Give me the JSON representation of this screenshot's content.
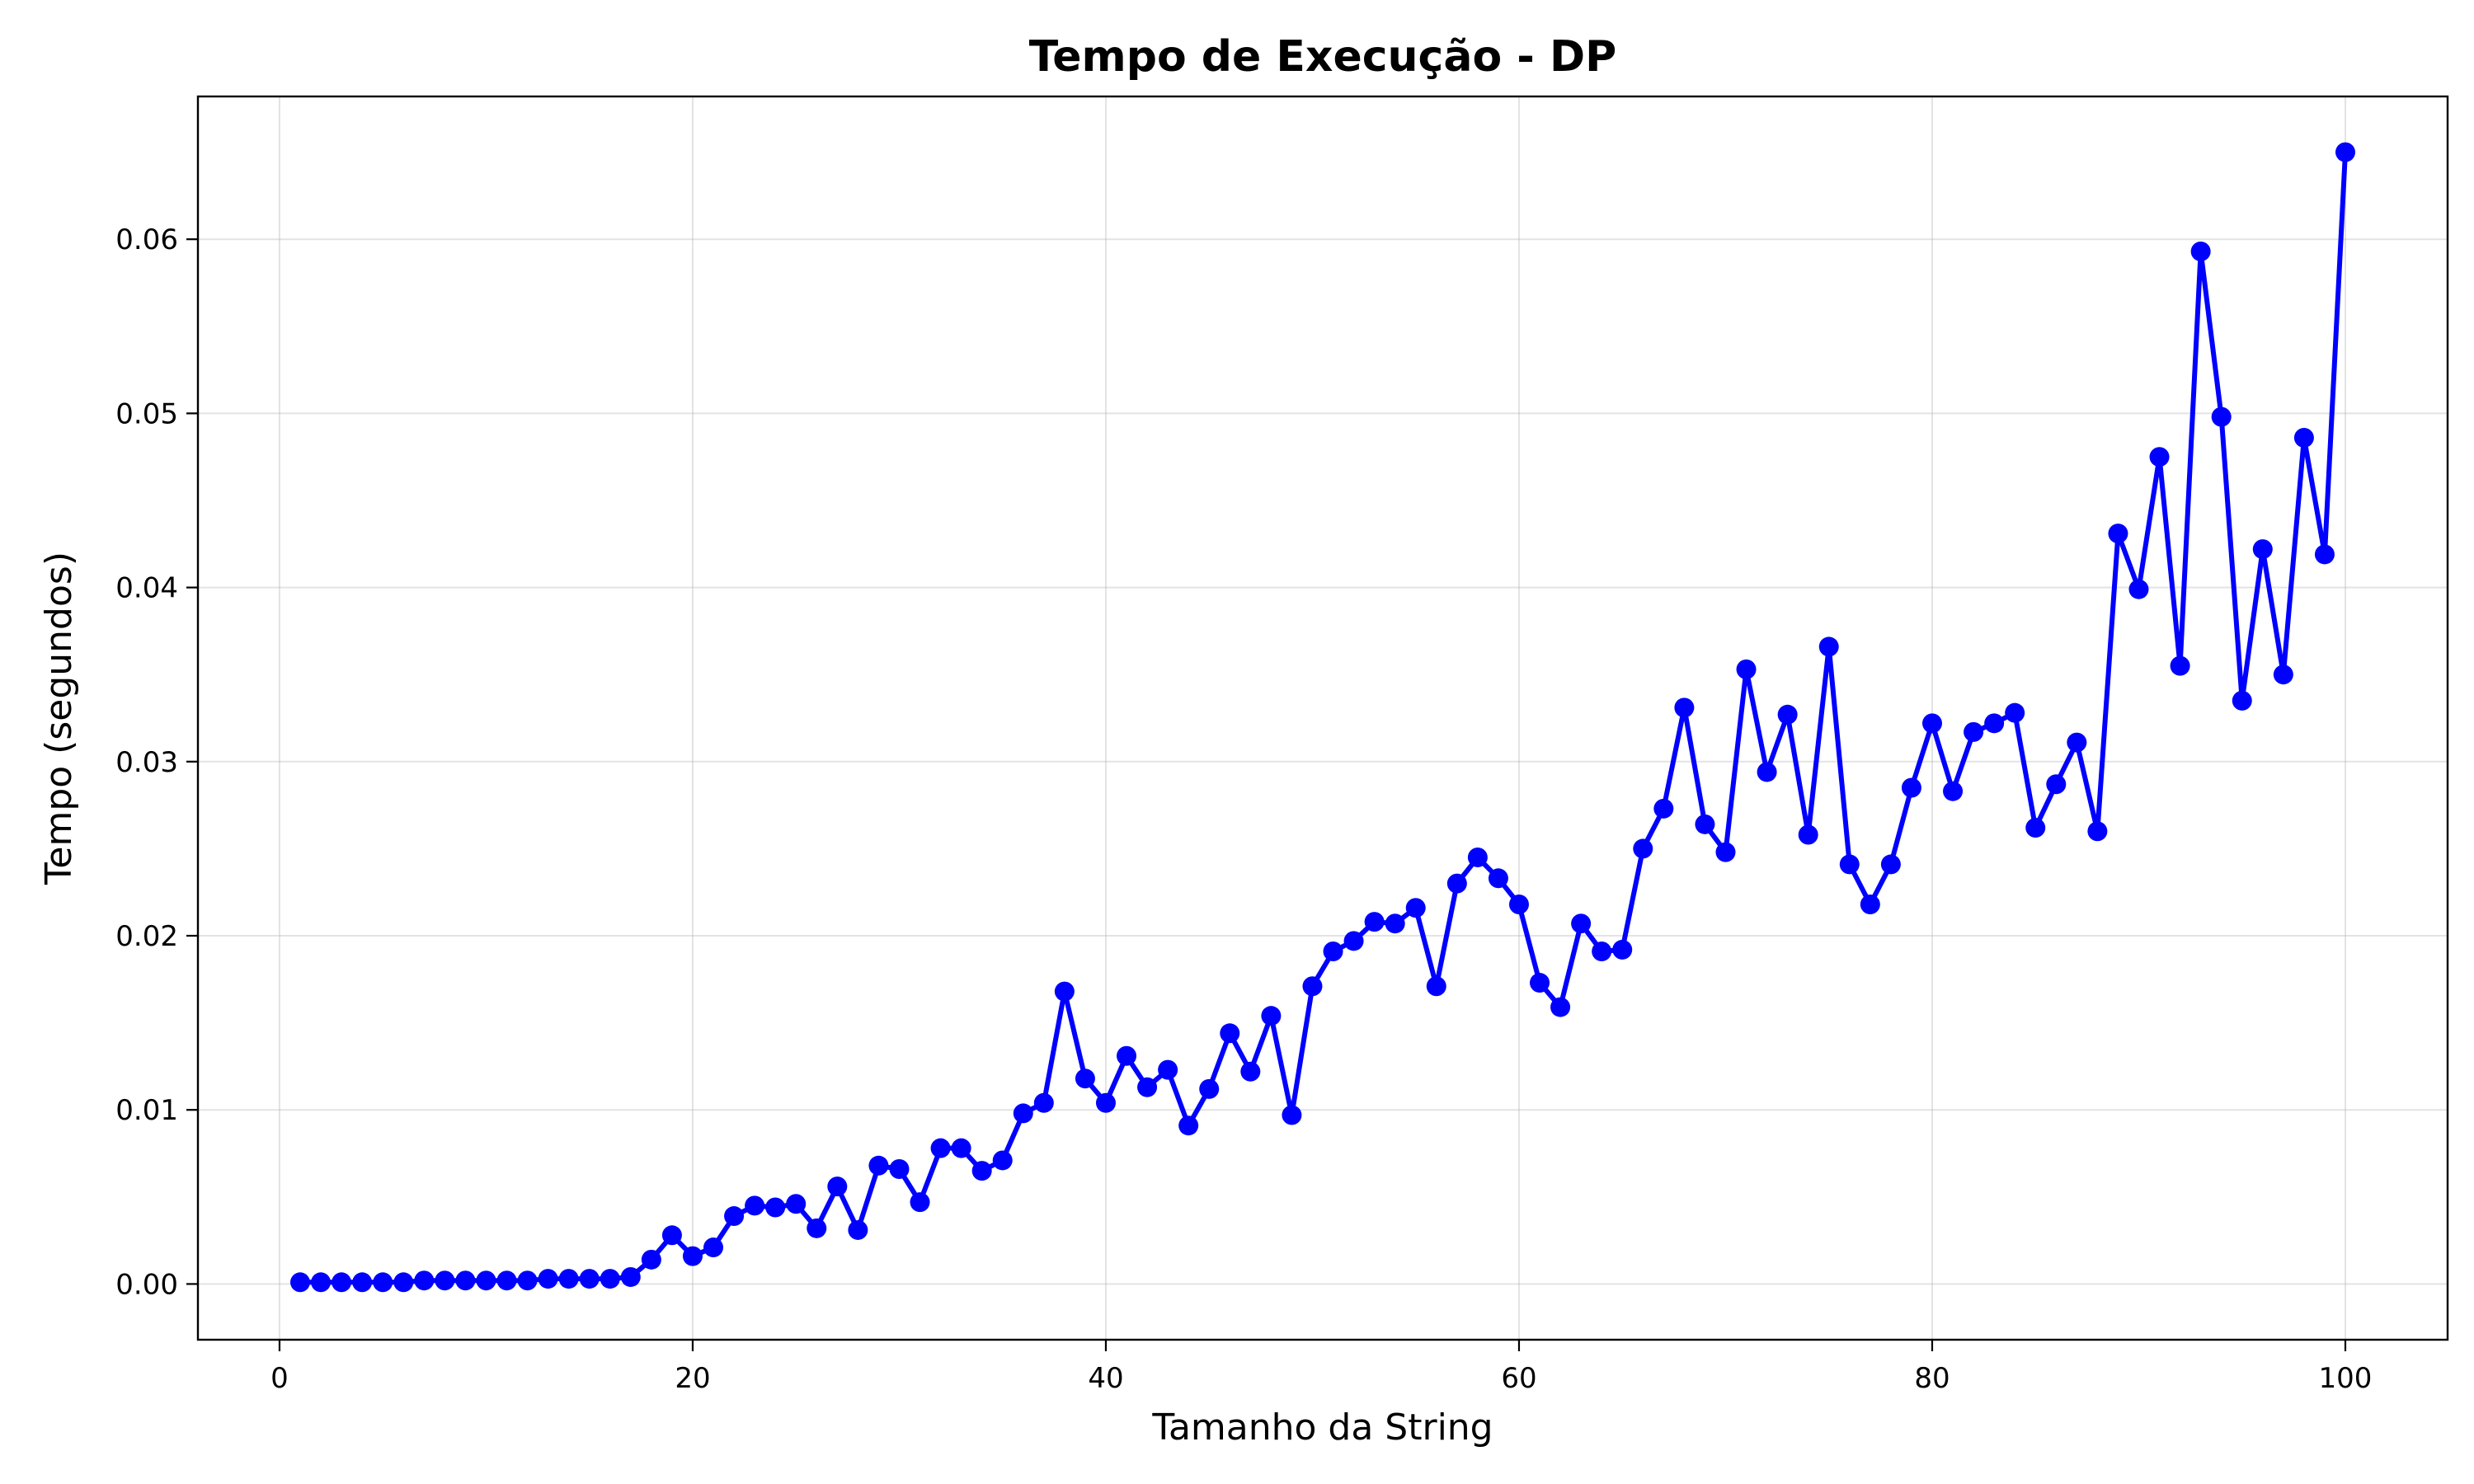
{
  "chart_data": {
    "type": "line",
    "title": "Tempo de Execução - DP",
    "xlabel": "Tamanho da String",
    "ylabel": "Tempo (segundos)",
    "xlim": [
      -3.95,
      104.95
    ],
    "ylim": [
      -0.0032,
      0.0682
    ],
    "xticks": [
      0,
      20,
      40,
      60,
      80,
      100
    ],
    "xtick_labels": [
      "0",
      "20",
      "40",
      "60",
      "80",
      "100"
    ],
    "yticks": [
      0.0,
      0.01,
      0.02,
      0.03,
      0.04,
      0.05,
      0.06
    ],
    "ytick_labels": [
      "0.00",
      "0.01",
      "0.02",
      "0.03",
      "0.04",
      "0.05",
      "0.06"
    ],
    "grid": true,
    "line_color": "#0000ff",
    "marker": "circle",
    "series": [
      {
        "x": [
          1,
          2,
          3,
          4,
          5,
          6,
          7,
          8,
          9,
          10,
          11,
          12,
          13,
          14,
          15,
          16,
          17,
          18,
          19,
          20,
          21,
          22,
          23,
          24,
          25,
          26,
          27,
          28,
          29,
          30,
          31,
          32,
          33,
          34,
          35,
          36,
          37,
          38,
          39,
          40,
          41,
          42,
          43,
          44,
          45,
          46,
          47,
          48,
          49,
          50,
          51,
          52,
          53,
          54,
          55,
          56,
          57,
          58,
          59,
          60,
          61,
          62,
          63,
          64,
          65,
          66,
          67,
          68,
          69,
          70,
          71,
          72,
          73,
          74,
          75,
          76,
          77,
          78,
          79,
          80,
          81,
          82,
          83,
          84,
          85,
          86,
          87,
          88,
          89,
          90,
          91,
          92,
          93,
          94,
          95,
          96,
          97,
          98,
          99,
          100
        ],
        "y": [
          0.0001,
          0.0001,
          0.0001,
          0.0001,
          0.0001,
          0.0001,
          0.0002,
          0.0002,
          0.0002,
          0.0002,
          0.0002,
          0.0002,
          0.0003,
          0.0003,
          0.0003,
          0.0003,
          0.0004,
          0.0014,
          0.0028,
          0.0016,
          0.0021,
          0.0039,
          0.0045,
          0.0044,
          0.0046,
          0.0032,
          0.0056,
          0.0031,
          0.0068,
          0.0066,
          0.0047,
          0.0078,
          0.0078,
          0.0065,
          0.0071,
          0.0098,
          0.0104,
          0.0168,
          0.0118,
          0.0104,
          0.0131,
          0.0113,
          0.0123,
          0.0091,
          0.0112,
          0.0144,
          0.0122,
          0.0154,
          0.0097,
          0.0171,
          0.0191,
          0.0197,
          0.0208,
          0.0207,
          0.0216,
          0.0171,
          0.023,
          0.0245,
          0.0233,
          0.0218,
          0.0173,
          0.0159,
          0.0207,
          0.0191,
          0.0192,
          0.025,
          0.0273,
          0.0331,
          0.0264,
          0.0248,
          0.0353,
          0.0294,
          0.0327,
          0.0258,
          0.0366,
          0.0241,
          0.0218,
          0.0241,
          0.0285,
          0.0322,
          0.0283,
          0.0317,
          0.0322,
          0.0328,
          0.0262,
          0.0287,
          0.0311,
          0.026,
          0.0431,
          0.0399,
          0.0475,
          0.0355,
          0.0593,
          0.0498,
          0.0335,
          0.0422,
          0.035,
          0.0486,
          0.0419,
          0.065
        ]
      }
    ]
  }
}
